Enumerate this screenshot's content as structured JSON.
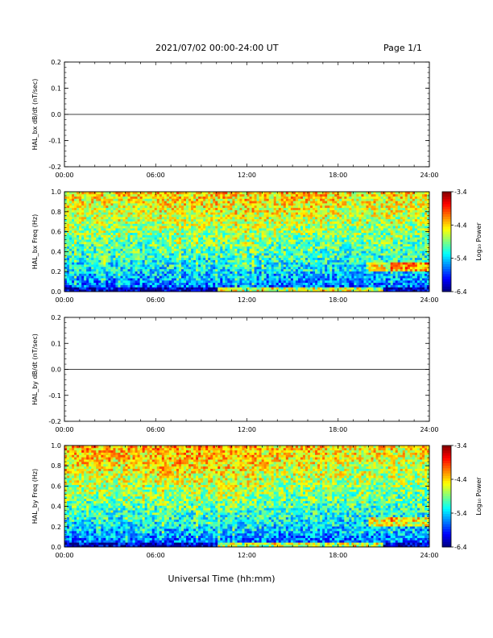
{
  "header": {
    "title": "2021/07/02  00:00-24:00 UT",
    "page_label": "Page 1/1"
  },
  "footer": {
    "xlabel": "Universal Time (hh:mm)"
  },
  "colorbar": {
    "label": "Log₁₀ Power",
    "range": [
      -6.4,
      -3.4
    ],
    "tick_labels": [
      "-3.4",
      "-4.4",
      "-5.4",
      "-6.4"
    ]
  },
  "chart_data": [
    {
      "type": "line",
      "ylabel": "HAL_bx dB/dt (nT/sec)",
      "x_tick_labels": [
        "00:00",
        "06:00",
        "12:00",
        "18:00",
        "24:00"
      ],
      "y_tick_labels": [
        "0.2",
        "0.1",
        "0.0",
        "-0.1",
        "-0.2"
      ],
      "xlim": [
        0,
        24
      ],
      "ylim": [
        -0.2,
        0.2
      ],
      "series": [
        {
          "x": [
            0,
            24
          ],
          "values": [
            0.0,
            0.0
          ]
        }
      ]
    },
    {
      "type": "heatmap",
      "ylabel": "HAL_bx Freq (Hz)",
      "x_tick_labels": [
        "00:00",
        "06:00",
        "12:00",
        "18:00",
        "24:00"
      ],
      "y_tick_labels": [
        "1.0",
        "0.8",
        "0.6",
        "0.4",
        "0.2",
        "0.0"
      ],
      "xlim": [
        0,
        24
      ],
      "ylim": [
        0,
        1.0
      ],
      "colorbar": "Log₁₀ Power"
    },
    {
      "type": "line",
      "ylabel": "HAL_by dB/dt (nT/sec)",
      "x_tick_labels": [
        "00:00",
        "06:00",
        "12:00",
        "18:00",
        "24:00"
      ],
      "y_tick_labels": [
        "0.2",
        "0.1",
        "0.0",
        "-0.1",
        "-0.2"
      ],
      "xlim": [
        0,
        24
      ],
      "ylim": [
        -0.2,
        0.2
      ],
      "series": [
        {
          "x": [
            0,
            24
          ],
          "values": [
            0.0,
            0.0
          ]
        }
      ]
    },
    {
      "type": "heatmap",
      "ylabel": "HAL_by Freq (Hz)",
      "x_tick_labels": [
        "00:00",
        "06:00",
        "12:00",
        "18:00",
        "24:00"
      ],
      "y_tick_labels": [
        "1.0",
        "0.8",
        "0.6",
        "0.4",
        "0.2",
        "0.0"
      ],
      "xlim": [
        0,
        24
      ],
      "ylim": [
        0,
        1.0
      ],
      "colorbar": "Log₁₀ Power"
    }
  ]
}
